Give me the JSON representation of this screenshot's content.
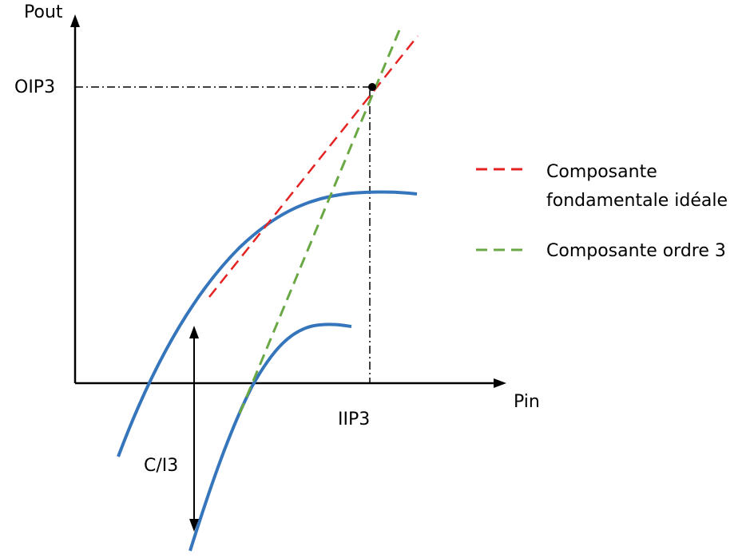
{
  "axes": {
    "y_label": "Pout",
    "x_label": "Pin",
    "oip3_label": "OIP3",
    "iip3_label": "IIP3",
    "ci3_label": "C/I3"
  },
  "legend": {
    "items": [
      {
        "lines": [
          "Composante",
          "fondamentale idéale"
        ],
        "color": "#e52323"
      },
      {
        "lines": [
          "Composante ordre 3"
        ],
        "color": "#6aa845"
      }
    ]
  },
  "colors": {
    "curve": "#3575bc",
    "fundamental_line": "#e52323",
    "third_order_line": "#6aa845",
    "axis": "#000000"
  }
}
